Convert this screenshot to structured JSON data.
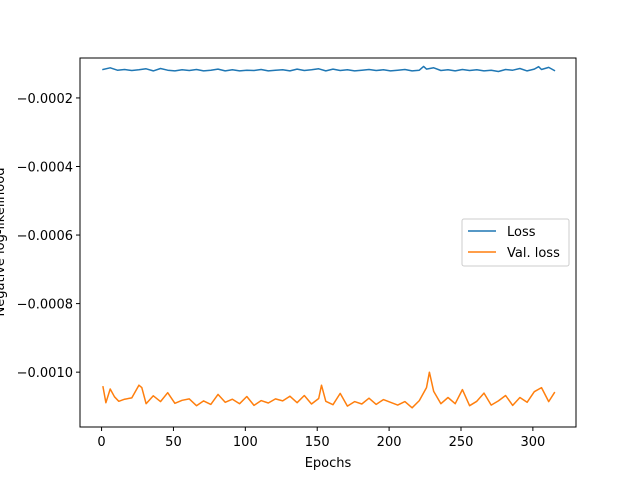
{
  "chart_data": {
    "type": "line",
    "title": "",
    "xlabel": "Epochs",
    "ylabel": "Negative log-likelihood",
    "xlim": [
      -15,
      330
    ],
    "ylim": [
      -0.00116,
      -8.35e-05
    ],
    "x_ticks": [
      0,
      50,
      100,
      150,
      200,
      250,
      300
    ],
    "x_tick_labels": [
      "0",
      "50",
      "100",
      "150",
      "200",
      "250",
      "300"
    ],
    "y_ticks": [
      -0.0002,
      -0.0004,
      -0.0006,
      -0.0008,
      -0.001
    ],
    "y_tick_labels": [
      "−0.0002",
      "−0.0004",
      "−0.0006",
      "−0.0008",
      "−0.0010"
    ],
    "grid": false,
    "legend_position": "center-right",
    "series": [
      {
        "name": "Loss",
        "color": "#1f77b4",
        "x": [
          1,
          6,
          11,
          16,
          21,
          26,
          31,
          36,
          41,
          46,
          51,
          56,
          61,
          66,
          71,
          76,
          81,
          86,
          91,
          96,
          101,
          106,
          111,
          116,
          121,
          126,
          131,
          136,
          141,
          146,
          151,
          156,
          161,
          166,
          171,
          176,
          181,
          186,
          191,
          196,
          201,
          206,
          211,
          216,
          221,
          224,
          226,
          231,
          236,
          241,
          246,
          251,
          256,
          261,
          266,
          271,
          276,
          281,
          286,
          291,
          296,
          301,
          304,
          306,
          311,
          315
        ],
        "values": [
          -0.000117,
          -0.000112,
          -0.000119,
          -0.000117,
          -0.00012,
          -0.000118,
          -0.000115,
          -0.000121,
          -0.000114,
          -0.000119,
          -0.000121,
          -0.000118,
          -0.00012,
          -0.000117,
          -0.000121,
          -0.000119,
          -0.000116,
          -0.000121,
          -0.000118,
          -0.000121,
          -0.000119,
          -0.00012,
          -0.000117,
          -0.000121,
          -0.000119,
          -0.000118,
          -0.000121,
          -0.000116,
          -0.00012,
          -0.000118,
          -0.000115,
          -0.000121,
          -0.000116,
          -0.00012,
          -0.000118,
          -0.000121,
          -0.000119,
          -0.000117,
          -0.00012,
          -0.000118,
          -0.000121,
          -0.000119,
          -0.000117,
          -0.000121,
          -0.000119,
          -0.000108,
          -0.000116,
          -0.000112,
          -0.00012,
          -0.000118,
          -0.000121,
          -0.000117,
          -0.00012,
          -0.000118,
          -0.000121,
          -0.000119,
          -0.000123,
          -0.000117,
          -0.000119,
          -0.000114,
          -0.000121,
          -0.000116,
          -0.000109,
          -0.000117,
          -0.000111,
          -0.00012
        ]
      },
      {
        "name": "Val. loss",
        "color": "#ff7f0e",
        "x": [
          1,
          3,
          6,
          9,
          12,
          16,
          21,
          26,
          28,
          31,
          36,
          41,
          46,
          51,
          56,
          61,
          66,
          71,
          76,
          81,
          86,
          91,
          96,
          101,
          106,
          111,
          116,
          121,
          126,
          131,
          136,
          141,
          146,
          151,
          153,
          156,
          161,
          166,
          171,
          176,
          181,
          186,
          191,
          196,
          201,
          206,
          211,
          216,
          221,
          226,
          228,
          231,
          236,
          241,
          246,
          251,
          256,
          261,
          266,
          271,
          276,
          281,
          286,
          291,
          296,
          301,
          306,
          311,
          315
        ],
        "values": [
          -0.001043,
          -0.001089,
          -0.001049,
          -0.001072,
          -0.001085,
          -0.001079,
          -0.001075,
          -0.001038,
          -0.001045,
          -0.001092,
          -0.001069,
          -0.001086,
          -0.00106,
          -0.001091,
          -0.001082,
          -0.001078,
          -0.001098,
          -0.001084,
          -0.001094,
          -0.001065,
          -0.001088,
          -0.001079,
          -0.001092,
          -0.001071,
          -0.001097,
          -0.001083,
          -0.00109,
          -0.001078,
          -0.001084,
          -0.00107,
          -0.001089,
          -0.001068,
          -0.001093,
          -0.001077,
          -0.001038,
          -0.001085,
          -0.001095,
          -0.001062,
          -0.001099,
          -0.001086,
          -0.001093,
          -0.001076,
          -0.001094,
          -0.00108,
          -0.001088,
          -0.001096,
          -0.001086,
          -0.001104,
          -0.001083,
          -0.001045,
          -0.001,
          -0.001056,
          -0.001092,
          -0.001074,
          -0.001092,
          -0.001051,
          -0.001098,
          -0.001085,
          -0.001061,
          -0.001096,
          -0.001084,
          -0.001068,
          -0.001097,
          -0.001074,
          -0.001088,
          -0.001057,
          -0.001045,
          -0.001086,
          -0.00106
        ]
      }
    ]
  }
}
